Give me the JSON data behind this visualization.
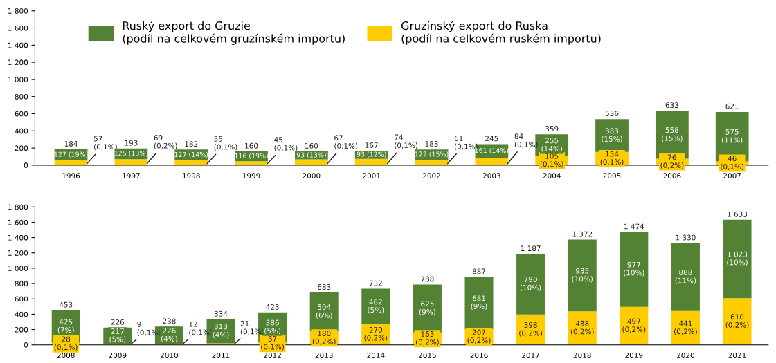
{
  "chart_data": [
    {
      "type": "bar",
      "stacked": true,
      "legend": "top left",
      "grid": false,
      "categories": [
        "1996",
        "1997",
        "1998",
        "1999",
        "2000",
        "2001",
        "2002",
        "2003",
        "2004",
        "2005",
        "2006",
        "2007"
      ],
      "ylim": [
        0,
        1800
      ],
      "yticks": [
        0,
        200,
        400,
        600,
        800,
        {
          "value": 1000,
          "label": "1 000"
        },
        {
          "value": 1200,
          "label": "1 200"
        },
        {
          "value": 1400,
          "label": "1 400"
        },
        {
          "value": 1600,
          "label": "1 600"
        },
        {
          "value": 1800,
          "label": "1 800"
        }
      ],
      "series": [
        {
          "name": "Gruzínský export do Ruska\n(podíl na celkovém ruském importu)",
          "color": "#ffcc00",
          "values": [
            57,
            69,
            55,
            45,
            67,
            74,
            61,
            84,
            105,
            154,
            76,
            46
          ],
          "value_labels": [
            "57\n(0,1%)",
            "69\n(0,2%)",
            "55\n(0,1%)",
            "45\n(0,1%)",
            "67\n(0,1%)",
            "74\n(0,1%)",
            "61\n(0,1%)",
            "84\n(0,1%)",
            "105\n(0,1%)",
            "154\n(0,1%)",
            "76\n(0,2%)",
            "46\n(0,1%)"
          ]
        },
        {
          "name": "Ruský export do Gruzie\n(podíl na celkovém gruzínském importu)",
          "color": "#548235",
          "values": [
            127,
            125,
            127,
            116,
            93,
            93,
            122,
            161,
            255,
            383,
            558,
            575
          ],
          "value_labels": [
            "127\n(19%)",
            "125\n(13%)",
            "127\n(14%)",
            "116\n(19%)",
            "93\n(13%)",
            "93\n(12%)",
            "122\n(15%)",
            "161\n(14%)",
            "255\n(14%)",
            "383\n(15%)",
            "558\n(15%)",
            "575\n(11%)"
          ]
        }
      ],
      "totals": [
        "184",
        "193",
        "182",
        "160",
        "160",
        "167",
        "183",
        "245",
        "359",
        "536",
        "633",
        "621"
      ]
    },
    {
      "type": "bar",
      "stacked": true,
      "grid": false,
      "categories": [
        "2008",
        "2009",
        "2010",
        "2011",
        "2012",
        "2013",
        "2014",
        "2015",
        "2016",
        "2017",
        "2018",
        "2019",
        "2020",
        "2021"
      ],
      "ylim": [
        0,
        1800
      ],
      "yticks": [
        0,
        200,
        400,
        600,
        800,
        {
          "value": 1000,
          "label": "1 000"
        },
        {
          "value": 1200,
          "label": "1 200"
        },
        {
          "value": 1400,
          "label": "1 400"
        },
        {
          "value": 1600,
          "label": "1 600"
        },
        {
          "value": 1800,
          "label": "1 800"
        }
      ],
      "series": [
        {
          "color": "#ffcc00",
          "values": [
            28,
            9,
            12,
            21,
            37,
            180,
            270,
            163,
            207,
            398,
            438,
            497,
            441,
            610
          ],
          "value_labels": [
            "28\n(0,1%)",
            "9\n(0,1%)",
            "12\n(0,1%)",
            "21\n(0,1%)",
            "37\n(0,1%)",
            "180\n(0,2%)",
            "270\n(0,2%)",
            "163\n(0,2%)",
            "207\n(0,2%)",
            "398\n(0,2%)",
            "438\n(0,2%)",
            "497\n(0,2%)",
            "441\n(0,2%)",
            "610\n(0,2%)"
          ]
        },
        {
          "color": "#548235",
          "values": [
            425,
            217,
            226,
            313,
            386,
            504,
            462,
            625,
            681,
            790,
            935,
            977,
            888,
            1023
          ],
          "value_labels": [
            "425\n(7%)",
            "217\n(5%)",
            "226\n(4%)",
            "313\n(4%)",
            "386\n(5%)",
            "504\n(6%)",
            "462\n(5%)",
            "625\n(9%)",
            "681\n(9%)",
            "790\n(10%)",
            "935\n(10%)",
            "977\n(10%)",
            "888\n(11%)",
            "1 023\n(10%)"
          ]
        }
      ],
      "totals": [
        "453",
        "226",
        "238",
        "334",
        "423",
        "683",
        "732",
        "788",
        "887",
        "1 187",
        "1 372",
        "1 474",
        "1 330",
        "1 633"
      ]
    }
  ]
}
